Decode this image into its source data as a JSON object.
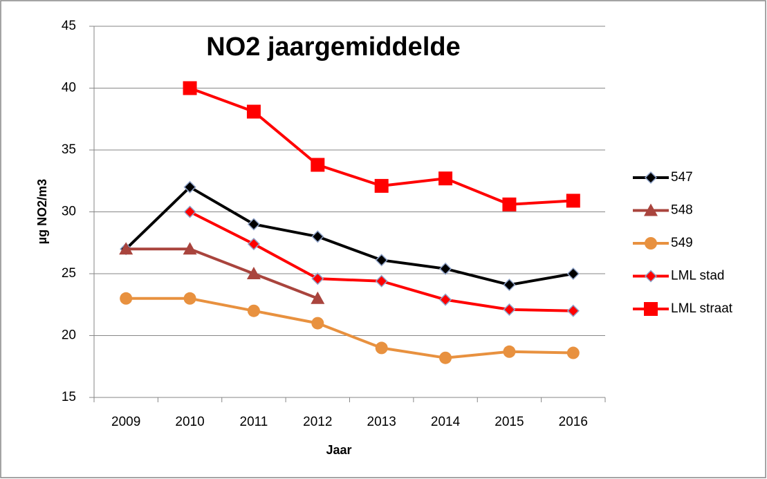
{
  "chart_data": {
    "type": "line",
    "title": "NO2 jaargemiddelde",
    "x_label": "Jaar",
    "y_label": "µg NO2/m3",
    "categories": [
      "2009",
      "2010",
      "2011",
      "2012",
      "2013",
      "2014",
      "2015",
      "2016"
    ],
    "ylim": [
      15,
      45
    ],
    "yticks": [
      15,
      20,
      25,
      30,
      35,
      40,
      45
    ],
    "grid": true,
    "legend": "right",
    "series": [
      {
        "name": "547",
        "color": "#000000",
        "marker": "diamond",
        "values": [
          27,
          32,
          29,
          28,
          26.1,
          25.4,
          24.1,
          25
        ]
      },
      {
        "name": "548",
        "color": "#a9443d",
        "marker": "triangle",
        "values": [
          27,
          27,
          25,
          23,
          null,
          null,
          null,
          null
        ]
      },
      {
        "name": "549",
        "color": "#e8913f",
        "marker": "circle",
        "values": [
          23,
          23,
          22,
          21,
          19,
          18.2,
          18.7,
          18.6
        ]
      },
      {
        "name": "LML stad",
        "color": "#ff0000",
        "marker": "diamond",
        "values": [
          null,
          30,
          27.4,
          24.6,
          24.4,
          22.9,
          22.1,
          22
        ]
      },
      {
        "name": "LML straat",
        "color": "#ff0000",
        "marker": "square",
        "values": [
          null,
          40,
          38.1,
          33.8,
          32.1,
          32.7,
          30.6,
          30.9
        ]
      }
    ]
  }
}
